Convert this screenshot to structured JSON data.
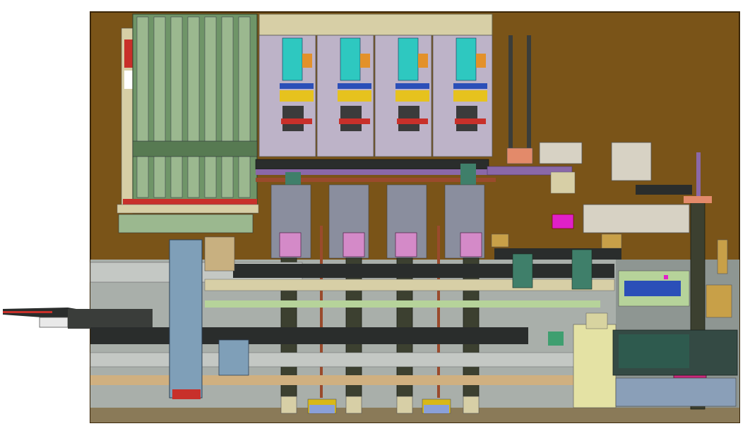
{
  "drawing": {
    "type": "CAD assembly layout",
    "view": "top-down",
    "colors": {
      "background": "#ffffff",
      "base_plate": "#7a5418",
      "base_plate_edge": "#3a2608",
      "gray_deck": "#a9afaa",
      "green_frame": "#6f9568",
      "light_green": "#b6d39a",
      "lilac_housing": "#bdb3c8",
      "beige_top": "#d7cfa6",
      "cyan": "#2ec8c0",
      "orange": "#e3912a",
      "yellow": "#e6c21e",
      "blue": "#2b4fb8",
      "red": "#c8302a",
      "purple_rail": "#8a68a8",
      "pink_block": "#d48ac8",
      "magenta": "#e020c8",
      "dark_chain": "#3c4030",
      "teal_block": "#3f7f6a",
      "steel_blue": "#7f9fb8",
      "copper_rod": "#9a4a2c",
      "dark_gray": "#2a2d2c"
    },
    "stations": 4
  }
}
